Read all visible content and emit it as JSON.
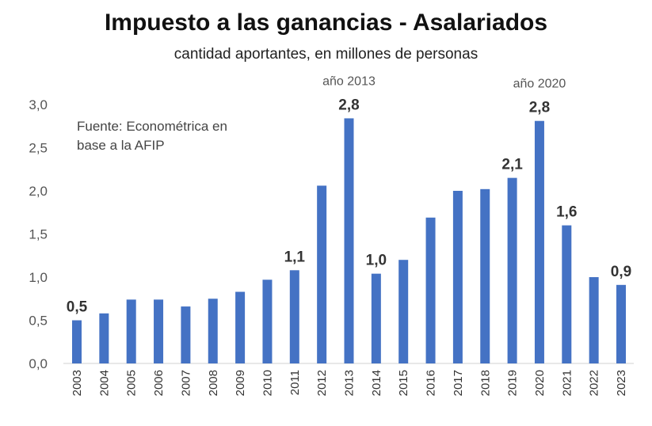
{
  "chart_data": {
    "type": "bar",
    "title": "Impuesto a las ganancias - Asalariados",
    "subtitle": "cantidad aportantes, en millones de personas",
    "source_line1": "Fuente: Econométrica en",
    "source_line2": "base a la AFIP",
    "categories": [
      "2003",
      "2004",
      "2005",
      "2006",
      "2007",
      "2008",
      "2009",
      "2010",
      "2011",
      "2012",
      "2013",
      "2014",
      "2015",
      "2016",
      "2017",
      "2018",
      "2019",
      "2020",
      "2021",
      "2022",
      "2023"
    ],
    "values": [
      0.5,
      0.58,
      0.74,
      0.74,
      0.66,
      0.75,
      0.83,
      0.97,
      1.08,
      2.06,
      2.84,
      1.04,
      1.2,
      1.69,
      2.0,
      2.02,
      2.15,
      2.81,
      1.6,
      1.0,
      0.91
    ],
    "data_labels": [
      {
        "index": 0,
        "text": "0,5"
      },
      {
        "index": 8,
        "text": "1,1"
      },
      {
        "index": 10,
        "text": "2,8"
      },
      {
        "index": 11,
        "text": "1,0"
      },
      {
        "index": 16,
        "text": "2,1"
      },
      {
        "index": 17,
        "text": "2,8"
      },
      {
        "index": 18,
        "text": "1,6"
      },
      {
        "index": 20,
        "text": "0,9"
      }
    ],
    "annotations": [
      {
        "index": 10,
        "text": "año 2013"
      },
      {
        "index": 17,
        "text": "año 2020"
      }
    ],
    "yticks": [
      "0,0",
      "0,5",
      "1,0",
      "1,5",
      "2,0",
      "2,5",
      "3,0"
    ],
    "ylim": [
      0,
      3.0
    ],
    "grid": false,
    "bar_color": "#4472C4"
  }
}
